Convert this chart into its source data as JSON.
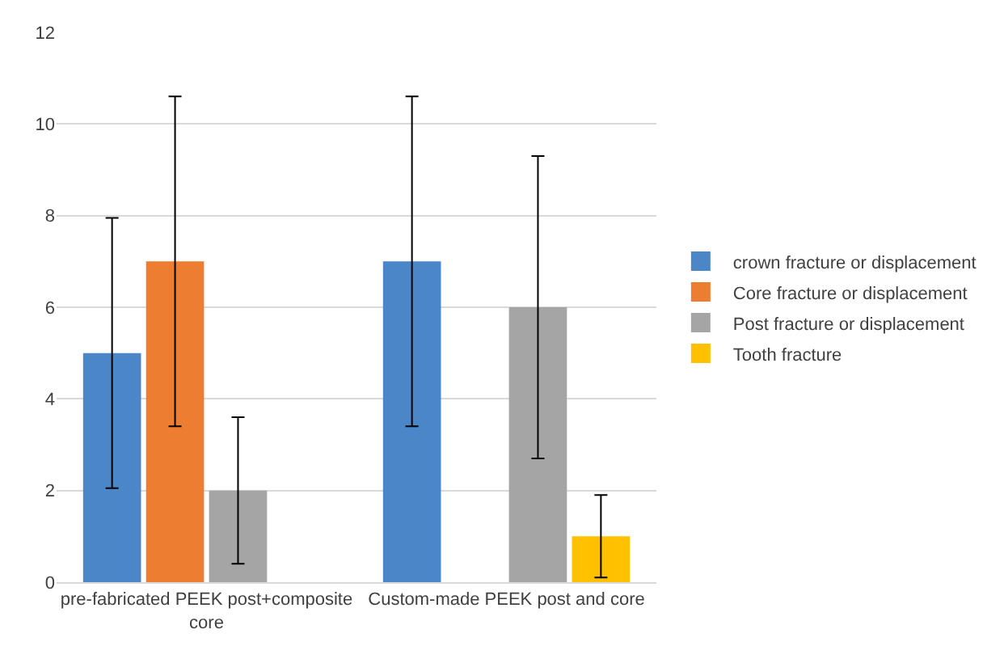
{
  "chart_data": {
    "type": "bar",
    "categories": [
      "pre-fabricated PEEK post+composite core",
      "Custom-made PEEK post and core"
    ],
    "series": [
      {
        "name": "crown fracture or displacement",
        "color": "#4a86c8",
        "values": [
          5,
          7
        ],
        "errors": [
          2.95,
          3.6
        ]
      },
      {
        "name": "Core fracture or displacement",
        "color": "#ed7d31",
        "values": [
          7,
          null
        ],
        "errors": [
          3.6,
          null
        ]
      },
      {
        "name": "Post fracture or displacement",
        "color": "#a5a5a5",
        "values": [
          2,
          6
        ],
        "errors": [
          1.6,
          3.3
        ]
      },
      {
        "name": "Tooth fracture",
        "color": "#ffc000",
        "values": [
          null,
          1
        ],
        "errors": [
          null,
          0.9
        ]
      }
    ],
    "ylim": [
      0,
      12
    ],
    "yticks": [
      0,
      2,
      4,
      6,
      8,
      10,
      12
    ],
    "grid": "y",
    "legend": "right"
  }
}
